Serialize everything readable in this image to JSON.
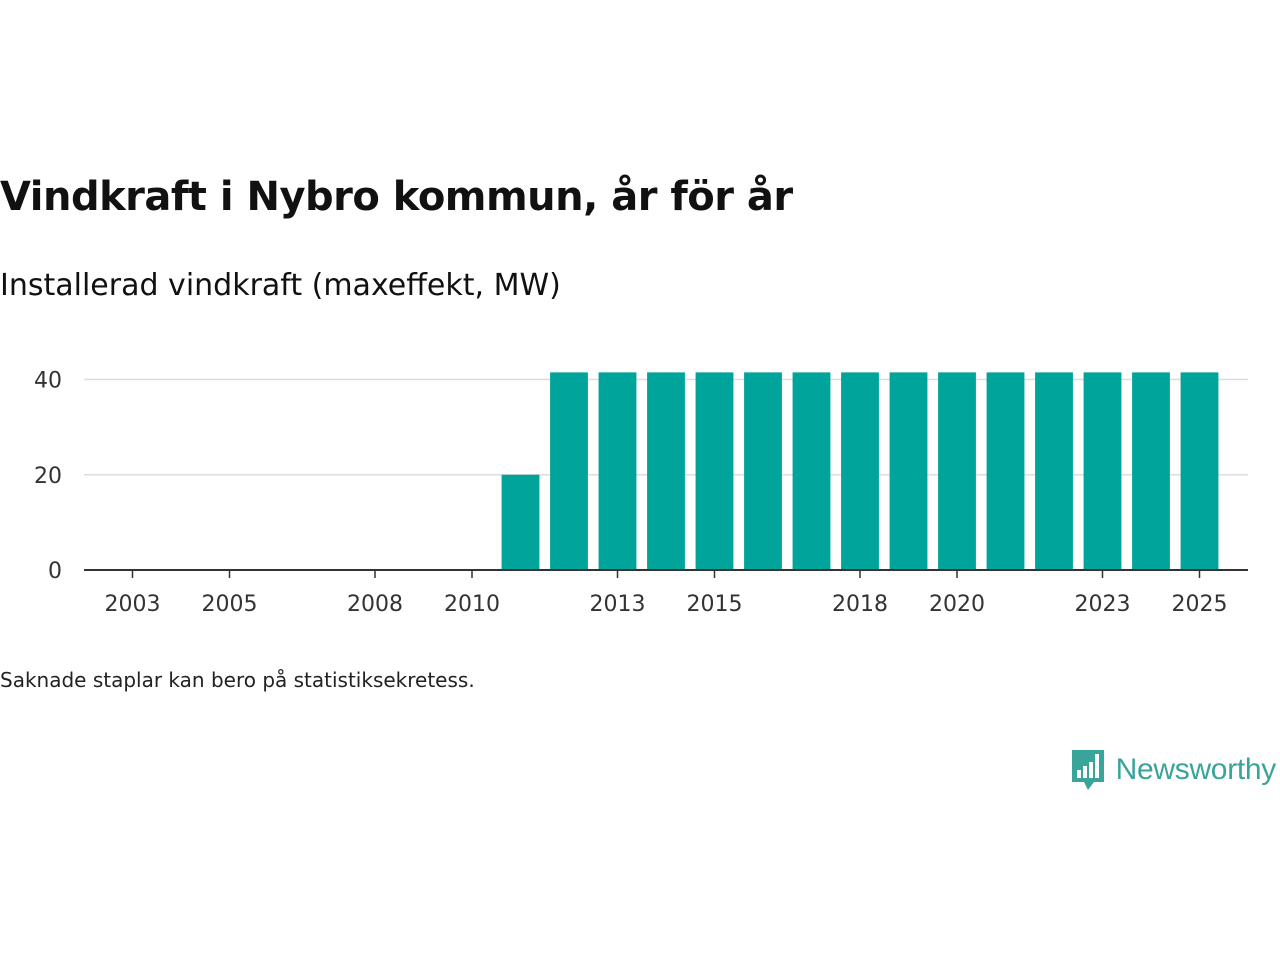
{
  "header": {
    "title": "Vindkraft i Nybro kommun, år för år",
    "subtitle": "Installerad vindkraft (maxeffekt, MW)"
  },
  "footer": {
    "note": "Saknade staplar kan bero på statistiksekretess.",
    "brand": "Newsworthy"
  },
  "colors": {
    "bar": "#00a49a",
    "grid": "#dddddd",
    "axis": "#333333",
    "brand": "#3aa49a"
  },
  "chart_data": {
    "type": "bar",
    "title": "Vindkraft i Nybro kommun, år för år",
    "subtitle": "Installerad vindkraft (maxeffekt, MW)",
    "xlabel": "",
    "ylabel": "",
    "x_range": [
      2002,
      2026
    ],
    "ylim": [
      0,
      42
    ],
    "y_ticks": [
      0,
      20,
      40
    ],
    "x_ticks": [
      2003,
      2005,
      2008,
      2010,
      2013,
      2015,
      2018,
      2020,
      2023,
      2025
    ],
    "grid": true,
    "categories": [
      2011,
      2012,
      2013,
      2014,
      2015,
      2016,
      2017,
      2018,
      2019,
      2020,
      2021,
      2022,
      2023,
      2024,
      2025
    ],
    "values": [
      20,
      41.5,
      41.5,
      41.5,
      41.5,
      41.5,
      41.5,
      41.5,
      41.5,
      41.5,
      41.5,
      41.5,
      41.5,
      41.5,
      41.5
    ]
  }
}
